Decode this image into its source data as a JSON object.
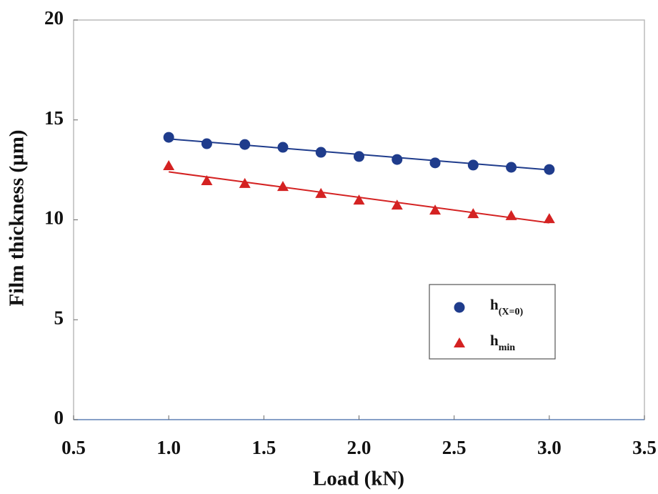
{
  "chart_data": {
    "type": "scatter",
    "x_label": "Load (kN)",
    "y_label": "Film thickness (µm)",
    "xlim": [
      0.5,
      3.5
    ],
    "xticks": [
      0.5,
      {
        "value": 1,
        "label": "1.0"
      },
      1.5,
      {
        "value": 2,
        "label": "2.0"
      },
      2.5,
      {
        "value": 3,
        "label": "3.0"
      },
      3.5
    ],
    "ylim": [
      0,
      20
    ],
    "yticks": [
      0,
      5,
      10,
      15,
      20
    ],
    "legend": "right",
    "series": [
      {
        "name": "h",
        "name_subscript": "(X=0)",
        "marker": "circle",
        "color": "#1f3c8c",
        "x": [
          1.0,
          1.2,
          1.4,
          1.6,
          1.8,
          2.0,
          2.2,
          2.4,
          2.6,
          2.8,
          3.0
        ],
        "values": [
          14.13,
          13.81,
          13.77,
          13.63,
          13.38,
          13.17,
          13.02,
          12.85,
          12.74,
          12.63,
          12.52
        ],
        "trend": {
          "x": [
            1.0,
            3.0
          ],
          "values": [
            14.05,
            12.5
          ]
        }
      },
      {
        "name": "h",
        "name_subscript": "min",
        "marker": "triangle",
        "color": "#d42222",
        "x": [
          1.0,
          1.2,
          1.4,
          1.6,
          1.8,
          2.0,
          2.2,
          2.4,
          2.6,
          2.8,
          3.0
        ],
        "values": [
          12.7,
          11.95,
          11.81,
          11.66,
          11.31,
          10.98,
          10.73,
          10.48,
          10.3,
          10.2,
          10.05
        ],
        "trend": {
          "x": [
            1.0,
            3.0
          ],
          "values": [
            12.4,
            9.85
          ]
        }
      }
    ]
  }
}
